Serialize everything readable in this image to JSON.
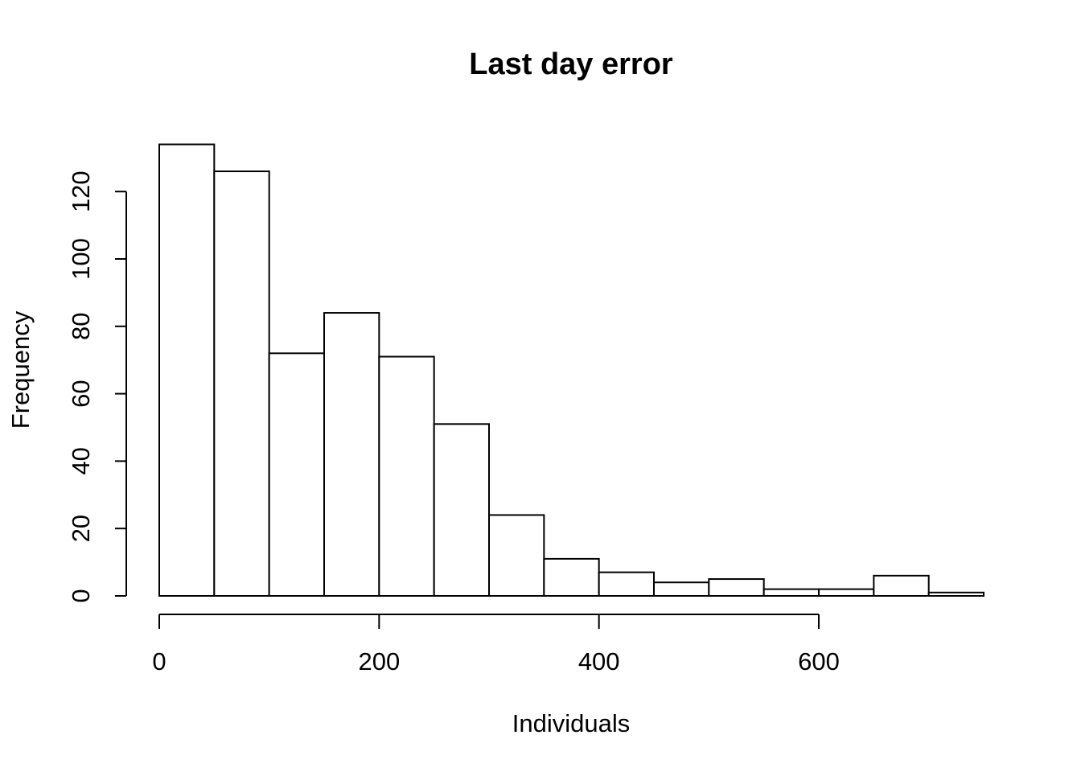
{
  "chart_data": {
    "type": "bar",
    "title": "Last day error",
    "xlabel": "Individuals",
    "ylabel": "Frequency",
    "bin_width": 50,
    "bins": [
      {
        "start": 0,
        "end": 50,
        "count": 134
      },
      {
        "start": 50,
        "end": 100,
        "count": 126
      },
      {
        "start": 100,
        "end": 150,
        "count": 72
      },
      {
        "start": 150,
        "end": 200,
        "count": 84
      },
      {
        "start": 200,
        "end": 250,
        "count": 71
      },
      {
        "start": 250,
        "end": 300,
        "count": 51
      },
      {
        "start": 300,
        "end": 350,
        "count": 24
      },
      {
        "start": 350,
        "end": 400,
        "count": 11
      },
      {
        "start": 400,
        "end": 450,
        "count": 7
      },
      {
        "start": 450,
        "end": 500,
        "count": 4
      },
      {
        "start": 500,
        "end": 550,
        "count": 5
      },
      {
        "start": 550,
        "end": 600,
        "count": 2
      },
      {
        "start": 600,
        "end": 650,
        "count": 2
      },
      {
        "start": 650,
        "end": 700,
        "count": 6
      },
      {
        "start": 700,
        "end": 750,
        "count": 1
      }
    ],
    "xlim": [
      0,
      750
    ],
    "ylim": [
      0,
      134
    ],
    "x_ticks": [
      0,
      200,
      400,
      600
    ],
    "x_tick_labels": [
      "0",
      "200",
      "400",
      "600"
    ],
    "y_ticks": [
      0,
      20,
      40,
      60,
      80,
      100,
      120
    ],
    "y_tick_labels": [
      "0",
      "20",
      "40",
      "60",
      "80",
      "100",
      "120"
    ],
    "grid": false,
    "legend": "none"
  }
}
